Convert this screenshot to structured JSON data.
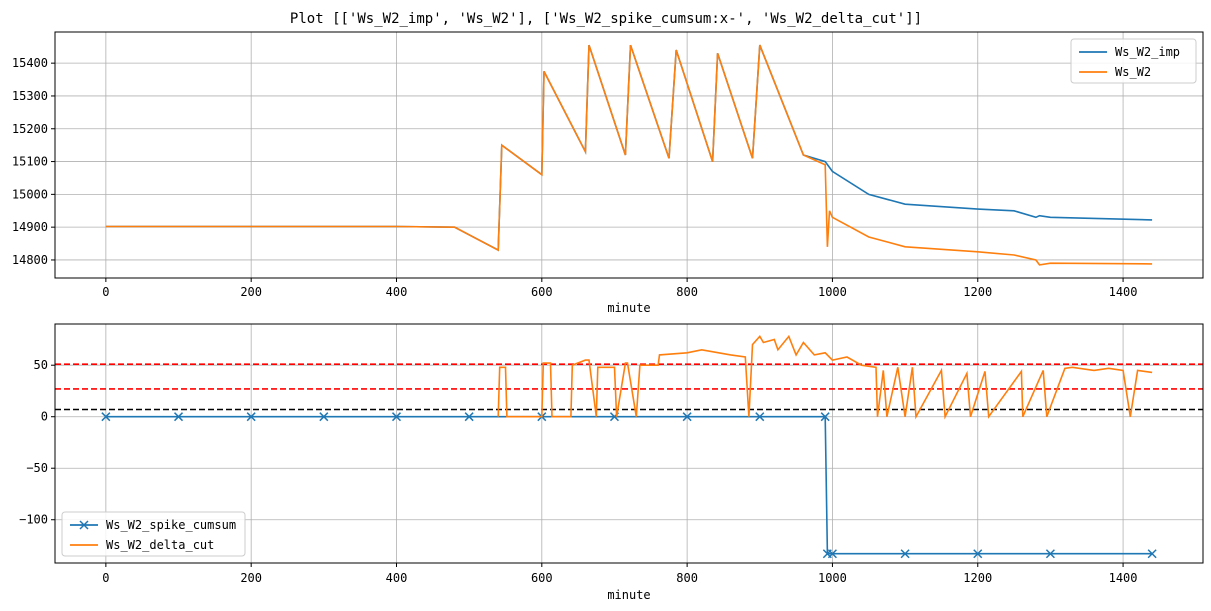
{
  "figure": {
    "title": "Plot [['Ws_W2_imp', 'Ws_W2'], ['Ws_W2_spike_cumsum:x-', 'Ws_W2_delta_cut']]"
  },
  "chart_data": [
    {
      "type": "line",
      "title": "",
      "xlabel": "minute",
      "ylabel": "",
      "xlim": [
        -70,
        1510
      ],
      "ylim": [
        14745,
        15495
      ],
      "xticks": [
        0,
        200,
        400,
        600,
        800,
        1000,
        1200,
        1400
      ],
      "yticks": [
        14800,
        14900,
        15000,
        15100,
        15200,
        15300,
        15400
      ],
      "grid": true,
      "legend_position": "upper-right",
      "series": [
        {
          "name": "Ws_W2_imp",
          "color": "#1f77b4",
          "style": "line",
          "x": [
            0,
            100,
            200,
            300,
            400,
            480,
            540,
            545,
            600,
            603,
            660,
            665,
            715,
            722,
            775,
            785,
            835,
            842,
            890,
            900,
            960,
            990,
            1000,
            1050,
            1100,
            1200,
            1250,
            1280,
            1285,
            1300,
            1440
          ],
          "y": [
            14902,
            14902,
            14902,
            14902,
            14902,
            14900,
            14830,
            15150,
            15060,
            15375,
            15130,
            15455,
            15120,
            15455,
            15110,
            15440,
            15100,
            15430,
            15110,
            15455,
            15120,
            15100,
            15070,
            15000,
            14970,
            14955,
            14950,
            14930,
            14935,
            14930,
            14922
          ]
        },
        {
          "name": "Ws_W2",
          "color": "#ff7f0e",
          "style": "line",
          "x": [
            0,
            100,
            200,
            300,
            400,
            480,
            540,
            545,
            600,
            603,
            660,
            665,
            715,
            722,
            775,
            785,
            835,
            842,
            890,
            900,
            960,
            990,
            993,
            996,
            1000,
            1050,
            1100,
            1200,
            1250,
            1280,
            1285,
            1300,
            1440
          ],
          "y": [
            14902,
            14902,
            14902,
            14902,
            14902,
            14900,
            14830,
            15150,
            15060,
            15375,
            15130,
            15455,
            15120,
            15455,
            15110,
            15440,
            15100,
            15430,
            15110,
            15455,
            15120,
            15090,
            14840,
            14950,
            14930,
            14870,
            14840,
            14825,
            14815,
            14800,
            14785,
            14790,
            14788
          ]
        }
      ]
    },
    {
      "type": "line",
      "title": "",
      "xlabel": "minute",
      "ylabel": "",
      "xlim": [
        -70,
        1510
      ],
      "ylim": [
        -142,
        90
      ],
      "xticks": [
        0,
        200,
        400,
        600,
        800,
        1000,
        1200,
        1400
      ],
      "yticks": [
        -100,
        -50,
        0,
        50
      ],
      "grid": true,
      "legend_position": "lower-left",
      "hlines": [
        {
          "y": 51,
          "color": "#ff0000"
        },
        {
          "y": 27,
          "color": "#ff0000"
        },
        {
          "y": 7,
          "color": "#000000"
        }
      ],
      "series": [
        {
          "name": "Ws_W2_spike_cumsum",
          "color": "#1f77b4",
          "style": "line-x",
          "x": [
            0,
            100,
            200,
            300,
            400,
            500,
            600,
            700,
            800,
            900,
            990,
            993,
            1000,
            1100,
            1200,
            1300,
            1440
          ],
          "y": [
            0,
            0,
            0,
            0,
            0,
            0,
            0,
            0,
            0,
            0,
            0,
            -133,
            -133,
            -133,
            -133,
            -133,
            -133
          ]
        },
        {
          "name": "Ws_W2_delta_cut",
          "color": "#ff7f0e",
          "style": "line",
          "x": [
            540,
            542,
            550,
            552,
            600,
            602,
            612,
            614,
            640,
            642,
            660,
            665,
            675,
            677,
            700,
            703,
            715,
            718,
            730,
            735,
            760,
            762,
            800,
            820,
            860,
            880,
            885,
            890,
            900,
            905,
            920,
            925,
            940,
            950,
            960,
            975,
            990,
            1000,
            1020,
            1040,
            1060,
            1062,
            1070,
            1075,
            1090,
            1100,
            1110,
            1115,
            1150,
            1155,
            1185,
            1190,
            1210,
            1215,
            1260,
            1262,
            1290,
            1295,
            1320,
            1330,
            1360,
            1380,
            1400,
            1410,
            1420,
            1440
          ],
          "y": [
            0,
            48,
            48,
            0,
            0,
            52,
            52,
            0,
            0,
            50,
            55,
            55,
            0,
            48,
            48,
            0,
            52,
            52,
            0,
            50,
            50,
            60,
            62,
            65,
            60,
            58,
            0,
            70,
            78,
            72,
            75,
            65,
            78,
            60,
            72,
            60,
            62,
            55,
            58,
            50,
            48,
            0,
            45,
            0,
            48,
            0,
            48,
            0,
            45,
            0,
            42,
            0,
            44,
            0,
            44,
            0,
            45,
            0,
            47,
            48,
            45,
            47,
            45,
            0,
            45,
            43
          ]
        }
      ]
    }
  ]
}
